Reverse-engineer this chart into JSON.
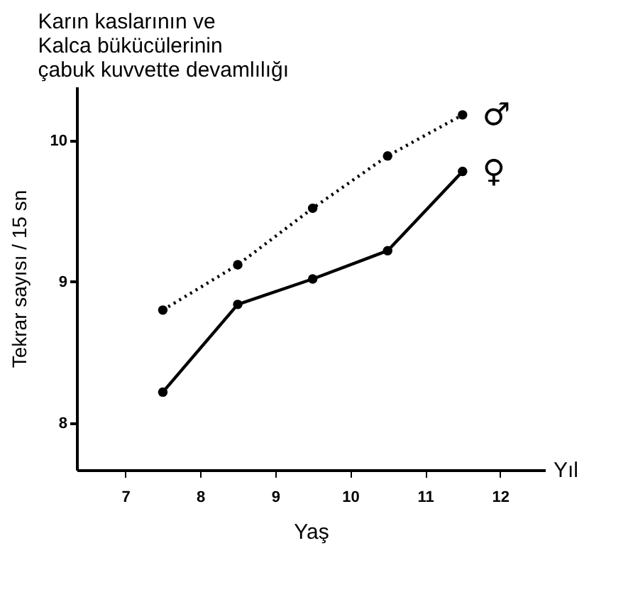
{
  "chart_data": {
    "type": "line",
    "title": "Karın kaslarının ve\nKalca bükücülerinin\nçabuk kuvvette devamlılığı",
    "xlabel": "Yaş",
    "ylabel": "Tekrar sayısı / 15 sn",
    "annotations": [
      "Yıl"
    ],
    "x": [
      7.5,
      8.5,
      9.5,
      10.5,
      11.5
    ],
    "series": [
      {
        "name": "♂",
        "color": "#000000",
        "line_style": "dotted",
        "values": [
          8.8,
          9.12,
          9.52,
          9.89,
          10.18
        ]
      },
      {
        "name": "♀",
        "color": "#000000",
        "line_style": "solid",
        "values": [
          8.22,
          8.84,
          9.02,
          9.22,
          9.78
        ]
      }
    ],
    "xlim": [
      6.35,
      12.6
    ],
    "xticks": [
      7,
      8,
      9,
      10,
      11,
      12
    ],
    "ylim": [
      7.67,
      10.38
    ],
    "yticks": [
      8,
      9,
      10
    ],
    "grid": false,
    "marker": "circle"
  }
}
